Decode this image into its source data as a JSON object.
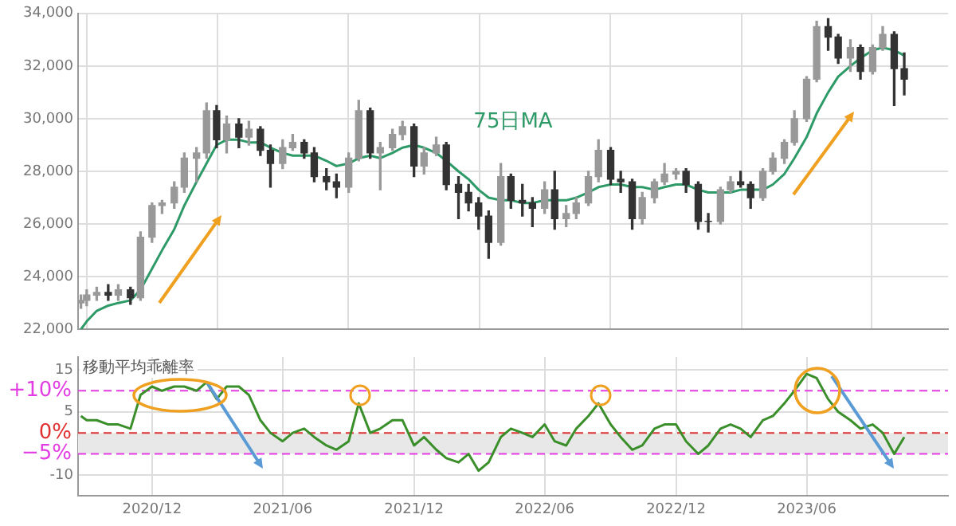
{
  "chart_data": [
    {
      "type": "candlestick",
      "colors": [
        "#999999",
        "#999999",
        "#999999",
        "#333333",
        "#999999",
        "#333333",
        "#999999",
        "#999999",
        "#999999",
        "#999999",
        "#999999",
        "#999999",
        "#999999",
        "#333333",
        "#999999",
        "#333333",
        "#999999",
        "#333333",
        "#333333",
        "#999999",
        "#999999",
        "#333333",
        "#333333",
        "#333333",
        "#333333",
        "#999999",
        "#999999",
        "#333333",
        "#999999",
        "#999999",
        "#999999",
        "#333333",
        "#999999",
        "#999999",
        "#333333",
        "#333333",
        "#333333",
        "#333333",
        "#333333",
        "#999999",
        "#333333",
        "#333333",
        "#333333",
        "#999999",
        "#333333",
        "#999999",
        "#999999",
        "#999999",
        "#999999",
        "#333333",
        "#333333",
        "#333333",
        "#999999",
        "#999999",
        "#999999",
        "#999999",
        "#333333",
        "#333333",
        "#333333",
        "#999999",
        "#999999",
        "#333333",
        "#333333",
        "#999999",
        "#999999",
        "#999999",
        "#999999",
        "#999999",
        "#999999",
        "#333333",
        "#333333",
        "#999999",
        "#333333",
        "#999999",
        "#999999",
        "#333333",
        "#333333"
      ],
      "grid": true,
      "tick_labels": "y",
      "xlim": [
        "2020-08-20",
        "2023-12-15"
      ],
      "xticks": [
        {
          "value": "2020-12-01",
          "label": null
        },
        {
          "value": "2021-06-01",
          "label": null
        },
        {
          "value": "2021-12-01",
          "label": null
        },
        {
          "value": "2022-06-01",
          "label": null
        },
        {
          "value": "2022-12-01",
          "label": null
        },
        {
          "value": "2023-06-01",
          "label": null
        }
      ],
      "ylim": [
        22000,
        34000
      ],
      "yticks": [
        {
          "value": 22000,
          "label": "22,000"
        },
        {
          "value": 24000,
          "label": "24,000"
        },
        {
          "value": 26000,
          "label": "26,000"
        },
        {
          "value": 28000,
          "label": "28,000"
        },
        {
          "value": 30000,
          "label": "30,000"
        },
        {
          "value": 32000,
          "label": "32,000"
        },
        {
          "value": 34000,
          "label": "34,000"
        }
      ],
      "x": [
        "2020-08-24",
        "2020-09-01",
        "2020-09-15",
        "2020-10-01",
        "2020-10-15",
        "2020-11-01",
        "2020-11-15",
        "2020-12-01",
        "2020-12-15",
        "2021-01-01",
        "2021-01-15",
        "2021-02-01",
        "2021-02-15",
        "2021-03-01",
        "2021-03-15",
        "2021-04-01",
        "2021-04-15",
        "2021-05-01",
        "2021-05-15",
        "2021-06-01",
        "2021-06-15",
        "2021-07-01",
        "2021-07-15",
        "2021-08-01",
        "2021-08-15",
        "2021-09-01",
        "2021-09-15",
        "2021-10-01",
        "2021-10-15",
        "2021-11-01",
        "2021-11-15",
        "2021-12-01",
        "2021-12-15",
        "2022-01-01",
        "2022-01-15",
        "2022-02-01",
        "2022-02-15",
        "2022-03-01",
        "2022-03-15",
        "2022-04-01",
        "2022-04-15",
        "2022-05-01",
        "2022-05-15",
        "2022-06-01",
        "2022-06-15",
        "2022-07-01",
        "2022-07-15",
        "2022-08-01",
        "2022-08-15",
        "2022-09-01",
        "2022-09-15",
        "2022-10-01",
        "2022-10-15",
        "2022-11-01",
        "2022-11-15",
        "2022-12-01",
        "2022-12-15",
        "2023-01-01",
        "2023-01-15",
        "2023-02-01",
        "2023-02-15",
        "2023-03-01",
        "2023-03-15",
        "2023-04-01",
        "2023-04-15",
        "2023-05-01",
        "2023-05-15",
        "2023-06-01",
        "2023-06-15",
        "2023-07-01",
        "2023-07-15",
        "2023-08-01",
        "2023-08-15",
        "2023-09-01",
        "2023-09-15",
        "2023-10-01",
        "2023-10-15"
      ],
      "ohlc": [
        [
          23000,
          23300,
          22800,
          23100
        ],
        [
          23100,
          23500,
          22900,
          23300
        ],
        [
          23300,
          23600,
          23100,
          23400
        ],
        [
          23400,
          23700,
          23100,
          23300
        ],
        [
          23300,
          23700,
          23100,
          23500
        ],
        [
          23500,
          23600,
          22950,
          23200
        ],
        [
          23200,
          25700,
          23100,
          25500
        ],
        [
          25500,
          26800,
          25300,
          26700
        ],
        [
          26700,
          26900,
          26400,
          26800
        ],
        [
          26800,
          27600,
          26600,
          27400
        ],
        [
          27400,
          28700,
          27200,
          28500
        ],
        [
          28500,
          28900,
          27600,
          28700
        ],
        [
          28700,
          30600,
          28500,
          30300
        ],
        [
          30300,
          30500,
          28900,
          29200
        ],
        [
          29200,
          30100,
          28700,
          29800
        ],
        [
          29800,
          30000,
          28900,
          29300
        ],
        [
          29300,
          29900,
          29000,
          29600
        ],
        [
          29600,
          29700,
          28600,
          28800
        ],
        [
          28800,
          29000,
          27400,
          28300
        ],
        [
          28300,
          29200,
          28100,
          28900
        ],
        [
          28900,
          29400,
          28800,
          29100
        ],
        [
          29100,
          29200,
          28500,
          28700
        ],
        [
          28700,
          28900,
          27600,
          27800
        ],
        [
          27800,
          28100,
          27300,
          27600
        ],
        [
          27600,
          27900,
          27000,
          27400
        ],
        [
          27400,
          28700,
          27200,
          28500
        ],
        [
          28500,
          30700,
          28400,
          30300
        ],
        [
          30300,
          30400,
          28500,
          28700
        ],
        [
          28700,
          29100,
          27300,
          28900
        ],
        [
          28900,
          29600,
          28800,
          29400
        ],
        [
          29400,
          29900,
          29200,
          29700
        ],
        [
          29700,
          29800,
          27800,
          28200
        ],
        [
          28200,
          28900,
          27900,
          28700
        ],
        [
          28700,
          29300,
          28600,
          29000
        ],
        [
          29000,
          29100,
          27300,
          27500
        ],
        [
          27500,
          27800,
          26200,
          27200
        ],
        [
          27200,
          27500,
          26500,
          26800
        ],
        [
          26800,
          27000,
          25800,
          26300
        ],
        [
          26300,
          26500,
          24700,
          25300
        ],
        [
          25300,
          28300,
          25200,
          27800
        ],
        [
          27800,
          27900,
          26600,
          26900
        ],
        [
          26900,
          27500,
          26300,
          26800
        ],
        [
          26800,
          27000,
          25900,
          26600
        ],
        [
          26600,
          27600,
          26400,
          27300
        ],
        [
          27300,
          28000,
          25800,
          26200
        ],
        [
          26200,
          26700,
          25900,
          26400
        ],
        [
          26400,
          27000,
          26200,
          26800
        ],
        [
          26800,
          28000,
          26700,
          27800
        ],
        [
          27800,
          29200,
          27600,
          28800
        ],
        [
          28800,
          28900,
          27500,
          27700
        ],
        [
          27700,
          28000,
          27200,
          27600
        ],
        [
          27600,
          27700,
          25800,
          26200
        ],
        [
          26200,
          27200,
          26000,
          27000
        ],
        [
          27000,
          27700,
          26800,
          27600
        ],
        [
          27600,
          28300,
          27500,
          27900
        ],
        [
          27900,
          28100,
          27700,
          28000
        ],
        [
          28000,
          28100,
          27200,
          27500
        ],
        [
          27500,
          27600,
          25800,
          26100
        ],
        [
          26100,
          26400,
          25700,
          26100
        ],
        [
          26100,
          27400,
          26000,
          27300
        ],
        [
          27300,
          27800,
          27200,
          27600
        ],
        [
          27600,
          28000,
          27400,
          27500
        ],
        [
          27500,
          27600,
          26600,
          27000
        ],
        [
          27000,
          28100,
          26900,
          28000
        ],
        [
          28000,
          28700,
          27900,
          28500
        ],
        [
          28500,
          29200,
          28300,
          29100
        ],
        [
          29100,
          30300,
          29000,
          30000
        ],
        [
          30000,
          31600,
          29900,
          31500
        ],
        [
          31500,
          33700,
          31400,
          33500
        ],
        [
          33500,
          33800,
          32600,
          33100
        ],
        [
          33100,
          33200,
          32100,
          32300
        ],
        [
          32300,
          33000,
          31800,
          32700
        ],
        [
          32700,
          32800,
          31500,
          31800
        ],
        [
          31800,
          32800,
          31700,
          32700
        ],
        [
          32700,
          33500,
          32600,
          33200
        ],
        [
          33200,
          33300,
          30500,
          31900
        ],
        [
          31900,
          32500,
          30900,
          31500
        ]
      ],
      "series": [
        {
          "type": "line",
          "color": "#2e9a68",
          "marker": "none",
          "line_style": "solid",
          "values": [
            22000,
            22300,
            22700,
            22900,
            23000,
            23100,
            23500,
            24300,
            25000,
            25800,
            26700,
            27600,
            28300,
            29000,
            29200,
            29200,
            29100,
            29100,
            28900,
            28700,
            28600,
            28600,
            28600,
            28400,
            28200,
            28300,
            28500,
            28600,
            28500,
            28700,
            28900,
            29000,
            28900,
            28700,
            28400,
            28000,
            27700,
            27300,
            27000,
            26900,
            26900,
            26800,
            26800,
            26900,
            26900,
            26900,
            27000,
            27200,
            27400,
            27500,
            27500,
            27400,
            27400,
            27300,
            27400,
            27500,
            27500,
            27300,
            27200,
            27200,
            27200,
            27300,
            27300,
            27300,
            27500,
            27900,
            28500,
            29300,
            30200,
            31000,
            31600,
            32000,
            32300,
            32600,
            32700,
            32600,
            32400
          ]
        }
      ],
      "annotations": [
        "75日MA"
      ]
    },
    {
      "type": "line",
      "title": "移動平均乖離率",
      "grid": true,
      "marker": "none",
      "line_style": "solid",
      "xlim": [
        "2020-08-20",
        "2023-12-15"
      ],
      "xticks": [
        {
          "value": "2020-12-01",
          "label": "2020/12"
        },
        {
          "value": "2021-06-01",
          "label": "2021/06"
        },
        {
          "value": "2021-12-01",
          "label": "2021/12"
        },
        {
          "value": "2022-06-01",
          "label": "2022/06"
        },
        {
          "value": "2022-12-01",
          "label": "2022/12"
        },
        {
          "value": "2023-06-01",
          "label": "2023/06"
        }
      ],
      "ylim": [
        -15,
        18
      ],
      "yticks": [
        -10,
        5,
        15
      ],
      "x": [
        "2020-08-24",
        "2020-09-01",
        "2020-09-15",
        "2020-10-01",
        "2020-10-15",
        "2020-11-01",
        "2020-11-15",
        "2020-12-01",
        "2020-12-15",
        "2021-01-01",
        "2021-01-15",
        "2021-02-01",
        "2021-02-15",
        "2021-03-01",
        "2021-03-15",
        "2021-04-01",
        "2021-04-15",
        "2021-05-01",
        "2021-05-15",
        "2021-06-01",
        "2021-06-15",
        "2021-07-01",
        "2021-07-15",
        "2021-08-01",
        "2021-08-15",
        "2021-09-01",
        "2021-09-15",
        "2021-10-01",
        "2021-10-15",
        "2021-11-01",
        "2021-11-15",
        "2021-12-01",
        "2021-12-15",
        "2022-01-01",
        "2022-01-15",
        "2022-02-01",
        "2022-02-15",
        "2022-03-01",
        "2022-03-15",
        "2022-04-01",
        "2022-04-15",
        "2022-05-01",
        "2022-05-15",
        "2022-06-01",
        "2022-06-15",
        "2022-07-01",
        "2022-07-15",
        "2022-08-01",
        "2022-08-15",
        "2022-09-01",
        "2022-09-15",
        "2022-10-01",
        "2022-10-15",
        "2022-11-01",
        "2022-11-15",
        "2022-12-01",
        "2022-12-15",
        "2023-01-01",
        "2023-01-15",
        "2023-02-01",
        "2023-02-15",
        "2023-03-01",
        "2023-03-15",
        "2023-04-01",
        "2023-04-15",
        "2023-05-01",
        "2023-05-15",
        "2023-06-01",
        "2023-06-15",
        "2023-07-01",
        "2023-07-15",
        "2023-08-01",
        "2023-08-15",
        "2023-09-01",
        "2023-09-15",
        "2023-10-01",
        "2023-10-15"
      ],
      "series": [
        {
          "color": "#3a8f2a",
          "values": [
            4,
            3,
            3,
            2,
            2,
            1,
            9,
            11,
            10,
            11,
            11,
            10,
            12,
            8,
            11,
            11,
            9,
            3,
            0,
            -2,
            0,
            1,
            -1,
            -3,
            -4,
            -2,
            7,
            0,
            1,
            3,
            3,
            -3,
            -1,
            -4,
            -6,
            -7,
            -5,
            -9,
            -7,
            -1,
            1,
            0,
            -1,
            2,
            -2,
            -3,
            1,
            4,
            7,
            2,
            -1,
            -4,
            -3,
            1,
            2,
            2,
            -2,
            -5,
            -3,
            1,
            2,
            1,
            -1,
            3,
            4,
            7,
            10,
            14,
            13,
            8,
            5,
            3,
            1,
            2,
            0,
            -5,
            -1
          ]
        }
      ],
      "bands": [
        {
          "axis": "y",
          "from": -5,
          "to": 0,
          "color": "#e8e8e8"
        }
      ],
      "ref_lines": [
        {
          "axis": "y",
          "value": 10,
          "label": "+10%",
          "color": "#e23ce2",
          "line_style": "dashed"
        },
        {
          "axis": "y",
          "value": 0,
          "label": "0%",
          "color": "#e03030",
          "line_style": "dashed"
        },
        {
          "axis": "y",
          "value": -5,
          "label": "−5%",
          "color": "#e23ce2",
          "line_style": "dashed"
        }
      ]
    }
  ]
}
